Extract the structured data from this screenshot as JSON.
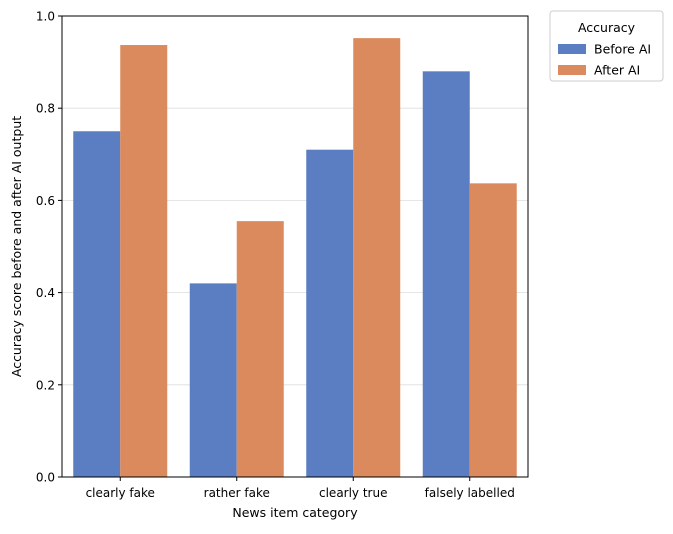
{
  "chart_data": {
    "type": "bar",
    "title": "",
    "xlabel": "News item category",
    "ylabel": "Accuracy score before and after AI output",
    "categories": [
      "clearly fake",
      "rather fake",
      "clearly true",
      "falsely labelled"
    ],
    "series": [
      {
        "name": "Before AI",
        "values": [
          0.75,
          0.42,
          0.71,
          0.88
        ],
        "color": "#5a7ec1"
      },
      {
        "name": "After AI",
        "values": [
          0.937,
          0.555,
          0.952,
          0.637
        ],
        "color": "#da8a5c"
      }
    ],
    "ylim": [
      0.0,
      1.0
    ],
    "yticks": [
      "0.0",
      "0.2",
      "0.4",
      "0.6",
      "0.8",
      "1.0"
    ],
    "grid": "horizontal",
    "legend": {
      "title": "Accuracy",
      "placement": "outside-top-right"
    }
  }
}
